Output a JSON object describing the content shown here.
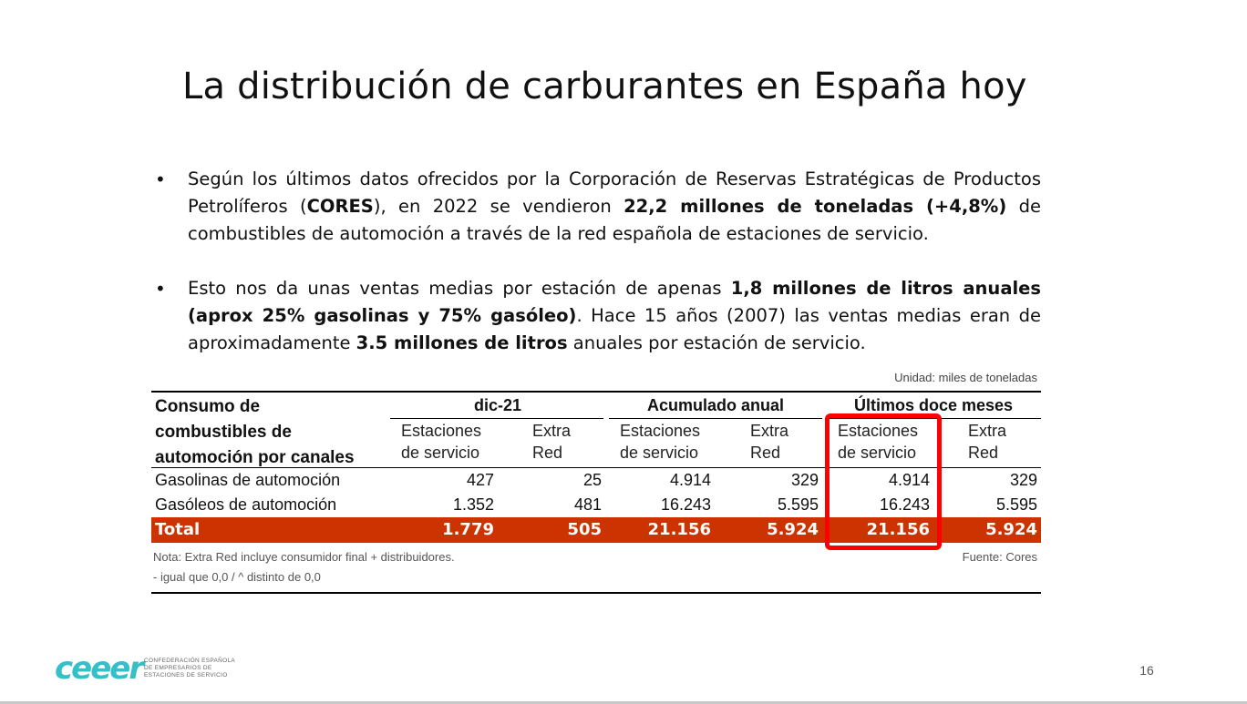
{
  "slide": {
    "title": "La distribución de carburantes en España hoy",
    "page_number": "16"
  },
  "bullets": [
    {
      "parts": [
        {
          "text": "Según los últimos datos ofrecidos por la Corporación de Reservas Estratégicas de Productos Petrolíferos (",
          "bold": false
        },
        {
          "text": "CORES",
          "bold": true
        },
        {
          "text": "), en 2022 se vendieron ",
          "bold": false
        },
        {
          "text": "22,2 millones de toneladas (+4,8%)",
          "bold": true
        },
        {
          "text": " de combustibles de automoción a través de la red española de estaciones de servicio.",
          "bold": false
        }
      ]
    },
    {
      "parts": [
        {
          "text": "Esto nos da unas ventas medias por estación de apenas ",
          "bold": false
        },
        {
          "text": "1,8 millones de litros anuales (aprox 25% gasolinas y 75% gasóleo)",
          "bold": true
        },
        {
          "text": ". Hace 15 años (2007) las ventas medias eran de aproximadamente ",
          "bold": false
        },
        {
          "text": "3.5 millones de litros",
          "bold": true
        },
        {
          "text": " anuales por estación de servicio.",
          "bold": false
        }
      ]
    }
  ],
  "table": {
    "unit": "Unidad: miles de toneladas",
    "row_header": "Consumo de combustibles de automoción por canales",
    "row_header_lines": [
      "Consumo de",
      "combustibles de",
      "automoción por canales"
    ],
    "groups": [
      "dic-21",
      "Acumulado anual",
      "Últimos doce meses"
    ],
    "subheaders": [
      [
        "Estaciones",
        "de servicio"
      ],
      [
        "Extra",
        "Red"
      ],
      [
        "Estaciones",
        "de servicio"
      ],
      [
        "Extra",
        "Red"
      ],
      [
        "Estaciones",
        "de servicio"
      ],
      [
        "Extra",
        "Red"
      ]
    ],
    "rows": [
      {
        "label": "Gasolinas de automoción",
        "values": [
          "427",
          "25",
          "4.914",
          "329",
          "4.914",
          "329"
        ]
      },
      {
        "label": "Gasóleos de automoción",
        "values": [
          "1.352",
          "481",
          "16.243",
          "5.595",
          "16.243",
          "5.595"
        ]
      }
    ],
    "total": {
      "label": "Total",
      "values": [
        "1.779",
        "505",
        "21.156",
        "5.924",
        "21.156",
        "5.924"
      ]
    },
    "note_1": "Nota: Extra Red incluye consumidor final + distribuidores.",
    "note_2": "- igual que 0,0 / ^ distinto de 0,0",
    "source": "Fuente: Cores",
    "highlight_color": "#ff0000",
    "total_color": "#cc3300"
  },
  "logo": {
    "wordmark": "ceeer",
    "org_lines": [
      "CONFEDERACIÓN ESPAÑOLA",
      "DE EMPRESARIOS DE",
      "ESTACIONES DE SERVICIO"
    ],
    "color": "#35c0c8"
  }
}
